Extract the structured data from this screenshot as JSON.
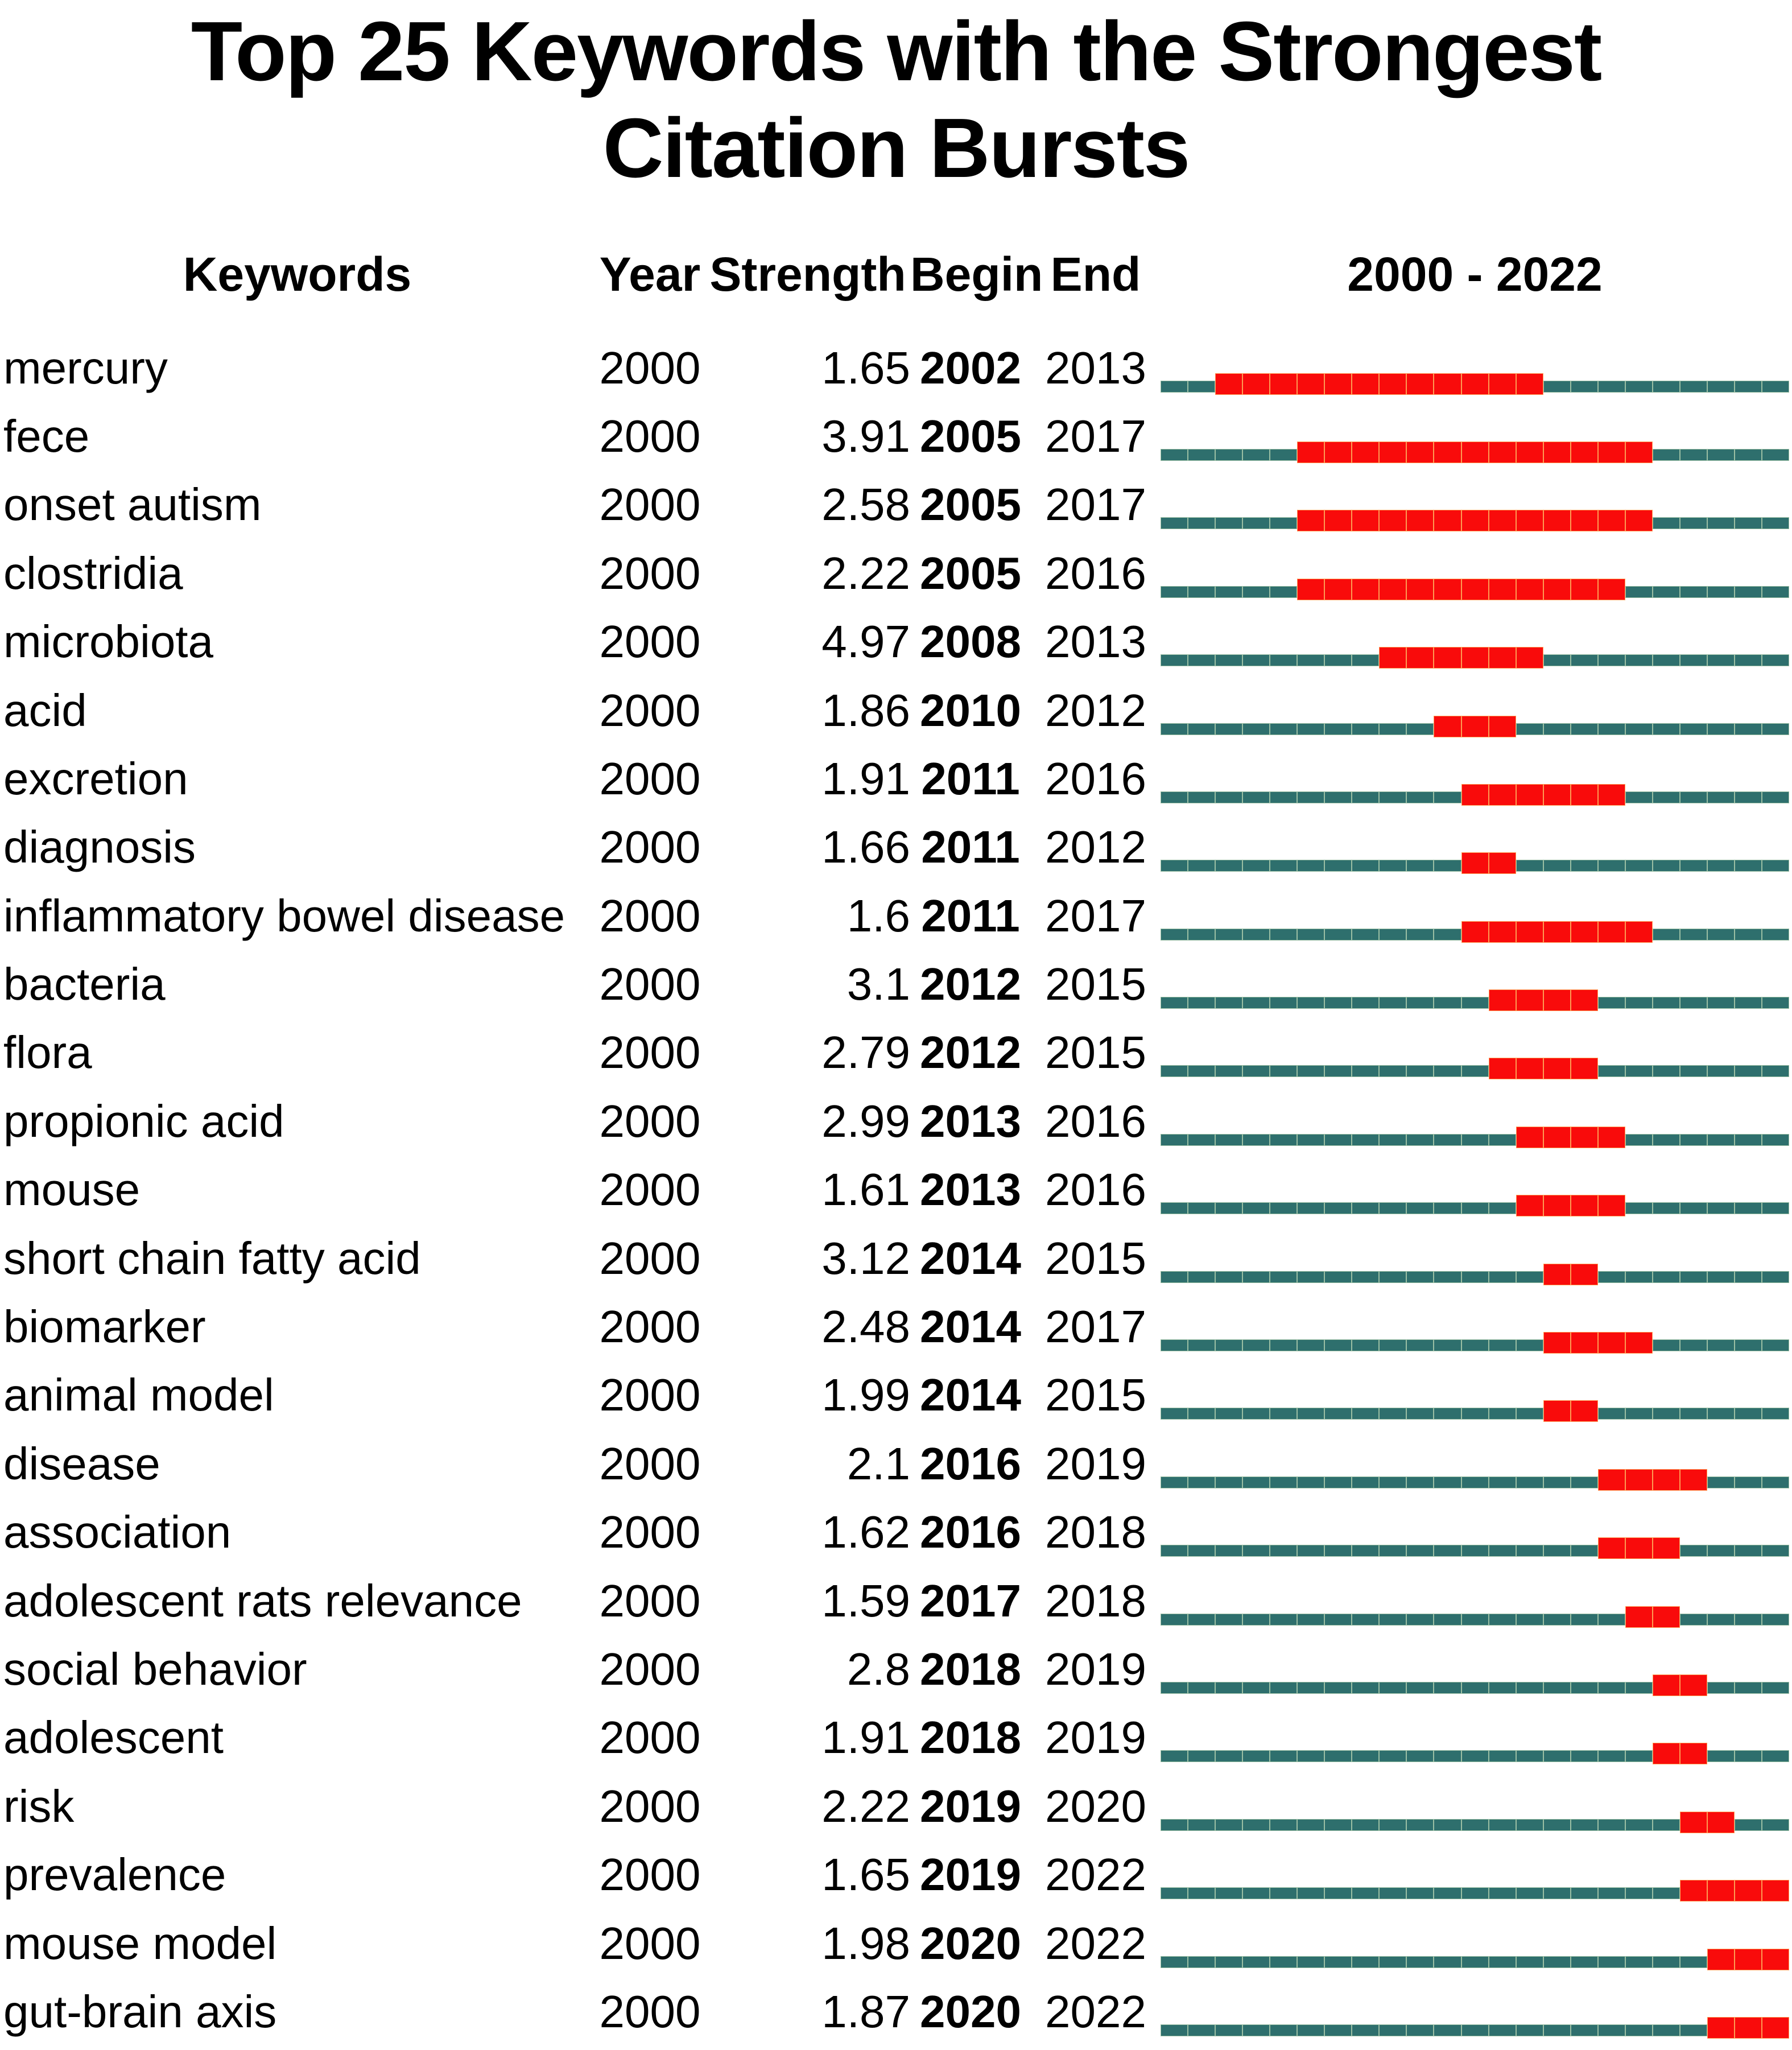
{
  "title_lines": {
    "line1": "Top 25 Keywords with the Strongest",
    "line2": "Citation Bursts"
  },
  "colors": {
    "base": "#2E6F6D",
    "burst": "#F90B0B",
    "base_divider": "#9BBFA4",
    "burst_divider": "#FE9B53",
    "text": "#000000",
    "background": "#FFFFFF"
  },
  "chart_data": {
    "type": "table",
    "title": "Top 25 Keywords with the Strongest Citation Bursts",
    "columns": [
      "Keywords",
      "Year",
      "Strength",
      "Begin",
      "End",
      "2000 - 2022"
    ],
    "timeline_range": [
      2000,
      2022
    ],
    "legend": {
      "base_segment": "year outside burst period",
      "burst_segment": "year inside burst period"
    },
    "rows": [
      {
        "keyword": "mercury",
        "year": "2000",
        "strength": "1.65",
        "begin": 2002,
        "end": 2013
      },
      {
        "keyword": "fece",
        "year": "2000",
        "strength": "3.91",
        "begin": 2005,
        "end": 2017
      },
      {
        "keyword": "onset autism",
        "year": "2000",
        "strength": "2.58",
        "begin": 2005,
        "end": 2017
      },
      {
        "keyword": "clostridia",
        "year": "2000",
        "strength": "2.22",
        "begin": 2005,
        "end": 2016
      },
      {
        "keyword": "microbiota",
        "year": "2000",
        "strength": "4.97",
        "begin": 2008,
        "end": 2013
      },
      {
        "keyword": "acid",
        "year": "2000",
        "strength": "1.86",
        "begin": 2010,
        "end": 2012
      },
      {
        "keyword": "excretion",
        "year": "2000",
        "strength": "1.91",
        "begin": 2011,
        "end": 2016
      },
      {
        "keyword": "diagnosis",
        "year": "2000",
        "strength": "1.66",
        "begin": 2011,
        "end": 2012
      },
      {
        "keyword": "inflammatory bowel disease",
        "year": "2000",
        "strength": "1.6",
        "begin": 2011,
        "end": 2017
      },
      {
        "keyword": "bacteria",
        "year": "2000",
        "strength": "3.1",
        "begin": 2012,
        "end": 2015
      },
      {
        "keyword": "flora",
        "year": "2000",
        "strength": "2.79",
        "begin": 2012,
        "end": 2015
      },
      {
        "keyword": "propionic acid",
        "year": "2000",
        "strength": "2.99",
        "begin": 2013,
        "end": 2016
      },
      {
        "keyword": "mouse",
        "year": "2000",
        "strength": "1.61",
        "begin": 2013,
        "end": 2016
      },
      {
        "keyword": "short chain fatty acid",
        "year": "2000",
        "strength": "3.12",
        "begin": 2014,
        "end": 2015
      },
      {
        "keyword": "biomarker",
        "year": "2000",
        "strength": "2.48",
        "begin": 2014,
        "end": 2017
      },
      {
        "keyword": "animal model",
        "year": "2000",
        "strength": "1.99",
        "begin": 2014,
        "end": 2015
      },
      {
        "keyword": "disease",
        "year": "2000",
        "strength": "2.1",
        "begin": 2016,
        "end": 2019
      },
      {
        "keyword": "association",
        "year": "2000",
        "strength": "1.62",
        "begin": 2016,
        "end": 2018
      },
      {
        "keyword": "adolescent rats relevance",
        "year": "2000",
        "strength": "1.59",
        "begin": 2017,
        "end": 2018
      },
      {
        "keyword": "social behavior",
        "year": "2000",
        "strength": "2.8",
        "begin": 2018,
        "end": 2019
      },
      {
        "keyword": "adolescent",
        "year": "2000",
        "strength": "1.91",
        "begin": 2018,
        "end": 2019
      },
      {
        "keyword": "risk",
        "year": "2000",
        "strength": "2.22",
        "begin": 2019,
        "end": 2020
      },
      {
        "keyword": "prevalence",
        "year": "2000",
        "strength": "1.65",
        "begin": 2019,
        "end": 2022
      },
      {
        "keyword": "mouse model",
        "year": "2000",
        "strength": "1.98",
        "begin": 2020,
        "end": 2022
      },
      {
        "keyword": "gut-brain axis",
        "year": "2000",
        "strength": "1.87",
        "begin": 2020,
        "end": 2022
      }
    ]
  }
}
